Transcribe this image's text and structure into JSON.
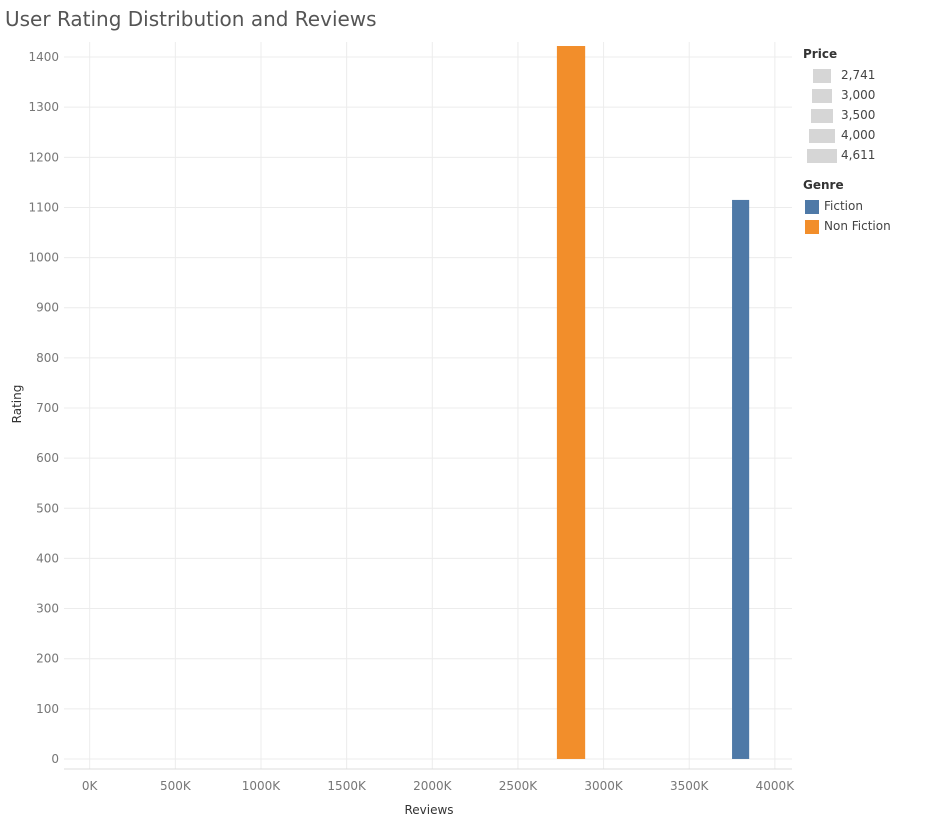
{
  "chart_data": {
    "type": "bar",
    "title": "User Rating Distribution and Reviews",
    "xlabel": "Reviews",
    "ylabel": "Rating",
    "xlim": [
      -150,
      4100
    ],
    "ylim": [
      -20,
      1430
    ],
    "x_unit": "K",
    "x_ticks": [
      0,
      500,
      1000,
      1500,
      2000,
      2500,
      3000,
      3500,
      4000
    ],
    "y_ticks": [
      0,
      100,
      200,
      300,
      400,
      500,
      600,
      700,
      800,
      900,
      1000,
      1100,
      1200,
      1300,
      1400
    ],
    "grid": true,
    "series": [
      {
        "name": "Non Fiction",
        "color": "#f28e2b",
        "x": 2810,
        "width": 165,
        "y": 1422
      },
      {
        "name": "Fiction",
        "color": "#4e79a7",
        "x": 3800,
        "width": 100,
        "y": 1115
      }
    ],
    "legend_position": "right",
    "size_legend": {
      "title": "Price",
      "items": [
        {
          "label": "2,741",
          "value": 2741
        },
        {
          "label": "3,000",
          "value": 3000
        },
        {
          "label": "3,500",
          "value": 3500
        },
        {
          "label": "4,000",
          "value": 4000
        },
        {
          "label": "4,611",
          "value": 4611
        }
      ]
    },
    "color_legend": {
      "title": "Genre",
      "items": [
        {
          "label": "Fiction",
          "color": "#4e79a7"
        },
        {
          "label": "Non Fiction",
          "color": "#f28e2b"
        }
      ]
    }
  }
}
